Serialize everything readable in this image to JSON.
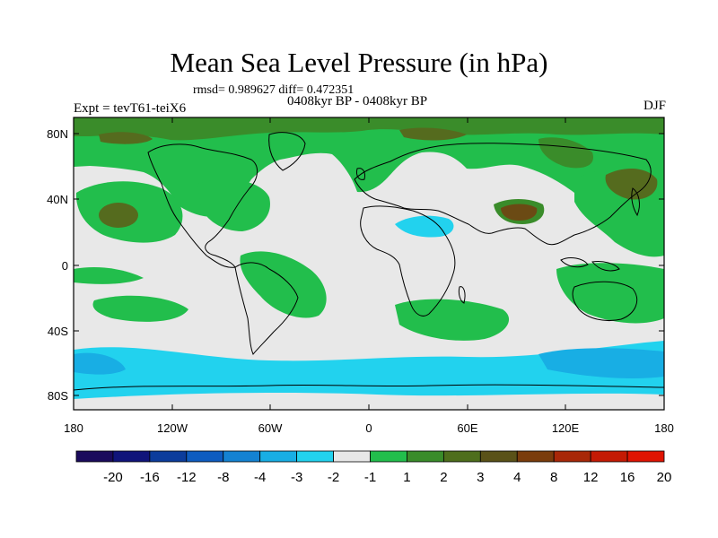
{
  "title": "Mean Sea Level Pressure (in hPa)",
  "stats": "rmsd= 0.989627 diff= 0.472351",
  "experiment": "Expt = tevT61-teiX6",
  "period": "0408kyr BP - 0408kyr BP",
  "season": "DJF",
  "lat_ticks": [
    "80N",
    "40N",
    "0",
    "40S",
    "80S"
  ],
  "lon_ticks": [
    "180",
    "120W",
    "60W",
    "0",
    "60E",
    "120E",
    "180"
  ],
  "colorbar": {
    "colors": [
      "#1a0a5c",
      "#10147a",
      "#0c3c9c",
      "#0e5cc0",
      "#1482d2",
      "#18aee4",
      "#22d2ee",
      "#e8e8e8",
      "#22be4c",
      "#3a8c2a",
      "#4e6e1c",
      "#5a5218",
      "#7a3c0c",
      "#a82808",
      "#c41a04",
      "#e01402"
    ],
    "labels": [
      "-20",
      "-16",
      "-12",
      "-8",
      "-4",
      "-3",
      "-2",
      "-1",
      "1",
      "2",
      "3",
      "4",
      "8",
      "12",
      "16",
      "20"
    ]
  },
  "fill_colors": {
    "neutral": "#e8e8e8",
    "green": "#22be4c",
    "dark_green": "#3a8c2a",
    "olive": "#556b1e",
    "brown": "#6b4a14",
    "cyan": "#22d2ee",
    "light_blue": "#18aee4",
    "coastline": "#000000"
  }
}
